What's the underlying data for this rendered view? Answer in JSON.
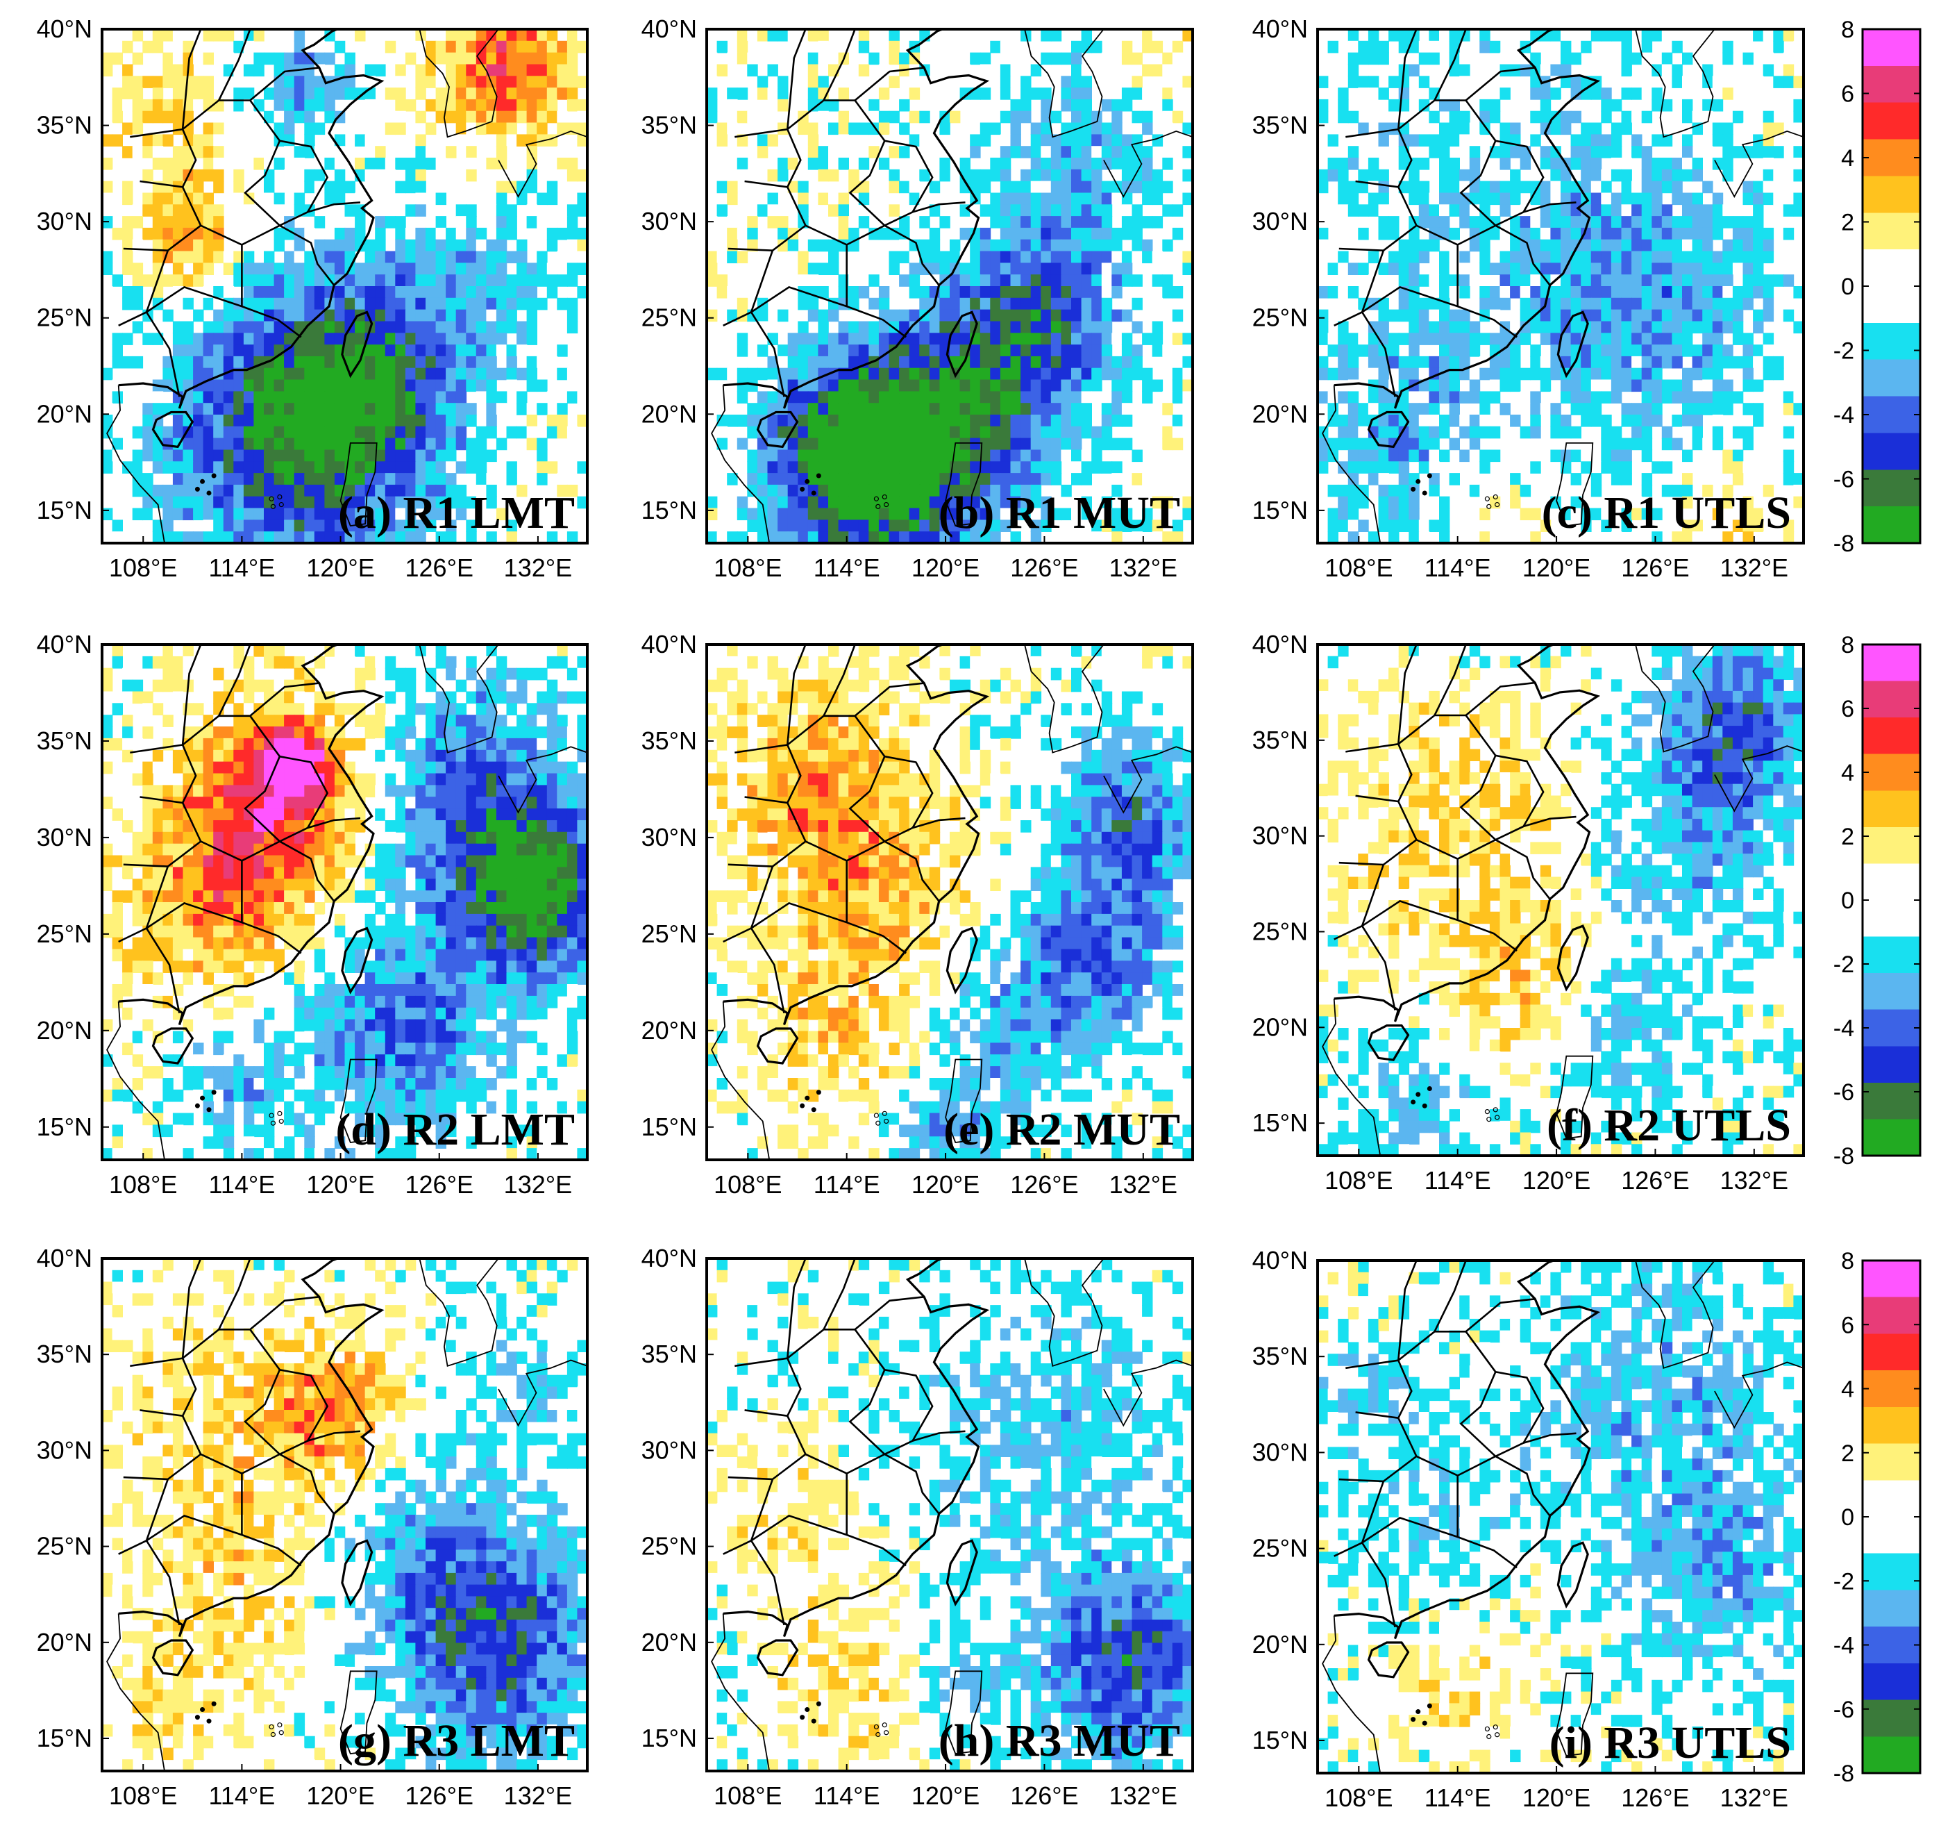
{
  "figure": {
    "lat_ticks": [
      "40°N",
      "35°N",
      "30°N",
      "25°N",
      "20°N",
      "15°N"
    ],
    "lon_ticks": [
      "108°E",
      "114°E",
      "120°E",
      "126°E",
      "132°E"
    ],
    "lat_range": [
      13.3,
      40
    ],
    "lon_range": [
      105.5,
      135
    ],
    "colorbar": {
      "ticks": [
        "8",
        "6",
        "4",
        "2",
        "0",
        "-2",
        "-4",
        "-6",
        "-8"
      ],
      "range": [
        -8,
        8
      ],
      "colors": [
        "#22aa22",
        "#3a7a3a",
        "#1a2fd8",
        "#3c63e6",
        "#5bb6f0",
        "#18e0f0",
        "#ffffff",
        "#ffffff",
        "#fff27a",
        "#ffc21e",
        "#ff8c1e",
        "#ff2a2a",
        "#e83c78",
        "#ff55ff"
      ]
    }
  },
  "panels": [
    {
      "id": "a",
      "label": "(a) R1 LMT",
      "features": [
        {
          "lon": 117,
          "lat": 19,
          "value": -6.5,
          "spread": 5
        },
        {
          "lon": 122,
          "lat": 22,
          "value": -4.5,
          "spread": 4
        },
        {
          "lon": 111,
          "lat": 29,
          "value": 3.5,
          "spread": 2
        },
        {
          "lon": 130,
          "lat": 38,
          "value": 4.5,
          "spread": 3
        },
        {
          "lon": 109,
          "lat": 35,
          "value": 2,
          "spread": 3
        },
        {
          "lon": 129,
          "lat": 27,
          "value": -2,
          "spread": 3
        },
        {
          "lon": 118,
          "lat": 37,
          "value": -3,
          "spread": 2
        }
      ]
    },
    {
      "id": "b",
      "label": "(b) R1 MUT",
      "features": [
        {
          "lon": 116,
          "lat": 17,
          "value": -7.5,
          "spread": 4
        },
        {
          "lon": 122,
          "lat": 21,
          "value": -5,
          "spread": 4
        },
        {
          "lon": 126,
          "lat": 25,
          "value": -4,
          "spread": 3
        },
        {
          "lon": 113,
          "lat": 19,
          "value": -3,
          "spread": 3
        },
        {
          "lon": 128,
          "lat": 33,
          "value": -2.5,
          "spread": 4
        },
        {
          "lon": 133,
          "lat": 39,
          "value": 2,
          "spread": 2
        }
      ]
    },
    {
      "id": "c",
      "label": "(c) R1 UTLS",
      "features": [
        {
          "lon": 116,
          "lat": 30,
          "value": -1.6,
          "spread": 8
        },
        {
          "lon": 126,
          "lat": 26,
          "value": -2.5,
          "spread": 5
        },
        {
          "lon": 110,
          "lat": 19,
          "value": -2,
          "spread": 4
        },
        {
          "lon": 116,
          "lat": 15,
          "value": 1.2,
          "spread": 2
        },
        {
          "lon": 131,
          "lat": 15,
          "value": 1.5,
          "spread": 2
        }
      ]
    },
    {
      "id": "d",
      "label": "(d) R2 LMT",
      "features": [
        {
          "lon": 116,
          "lat": 32,
          "value": 5,
          "spread": 4
        },
        {
          "lon": 117,
          "lat": 33.5,
          "value": 7.5,
          "spread": 1.2
        },
        {
          "lon": 112,
          "lat": 26,
          "value": 3,
          "spread": 4
        },
        {
          "lon": 132,
          "lat": 27,
          "value": -7,
          "spread": 3
        },
        {
          "lon": 128,
          "lat": 32,
          "value": -4.5,
          "spread": 4
        },
        {
          "lon": 124,
          "lat": 20,
          "value": -4,
          "spread": 4
        },
        {
          "lon": 114,
          "lat": 18,
          "value": -2.5,
          "spread": 3
        }
      ]
    },
    {
      "id": "e",
      "label": "(e) R2 MUT",
      "features": [
        {
          "lon": 112,
          "lat": 33,
          "value": 3,
          "spread": 4
        },
        {
          "lon": 116,
          "lat": 27,
          "value": 2.5,
          "spread": 4
        },
        {
          "lon": 113,
          "lat": 20,
          "value": 2,
          "spread": 3
        },
        {
          "lon": 131,
          "lat": 31,
          "value": -4.5,
          "spread": 3
        },
        {
          "lon": 129,
          "lat": 24,
          "value": -4,
          "spread": 3
        },
        {
          "lon": 124,
          "lat": 20,
          "value": -2.5,
          "spread": 3
        },
        {
          "lon": 120,
          "lat": 15,
          "value": -2.5,
          "spread": 2
        }
      ]
    },
    {
      "id": "f",
      "label": "(f) R2 UTLS",
      "features": [
        {
          "lon": 114,
          "lat": 30,
          "value": 2,
          "spread": 5
        },
        {
          "lon": 118,
          "lat": 22,
          "value": 2,
          "spread": 3
        },
        {
          "lon": 131,
          "lat": 36,
          "value": -4.5,
          "spread": 3
        },
        {
          "lon": 128,
          "lat": 30,
          "value": -2.5,
          "spread": 4
        },
        {
          "lon": 124,
          "lat": 20,
          "value": -2,
          "spread": 3
        },
        {
          "lon": 112,
          "lat": 16,
          "value": -1.8,
          "spread": 3
        }
      ]
    },
    {
      "id": "g",
      "label": "(g) R3 LMT",
      "features": [
        {
          "lon": 120,
          "lat": 32,
          "value": 3.5,
          "spread": 2.5
        },
        {
          "lon": 114,
          "lat": 31,
          "value": 1.8,
          "spread": 5
        },
        {
          "lon": 113,
          "lat": 22,
          "value": 1.5,
          "spread": 4
        },
        {
          "lon": 130,
          "lat": 20,
          "value": -5,
          "spread": 4
        },
        {
          "lon": 125,
          "lat": 24,
          "value": -2.5,
          "spread": 4
        },
        {
          "lon": 131,
          "lat": 33,
          "value": -2,
          "spread": 2
        },
        {
          "lon": 109,
          "lat": 16,
          "value": 1.5,
          "spread": 2
        }
      ]
    },
    {
      "id": "h",
      "label": "(h) R3 MUT",
      "features": [
        {
          "lon": 131,
          "lat": 19,
          "value": -5.5,
          "spread": 3.5
        },
        {
          "lon": 126,
          "lat": 31,
          "value": -2.2,
          "spread": 5
        },
        {
          "lon": 114,
          "lat": 18,
          "value": 1.8,
          "spread": 3
        },
        {
          "lon": 110,
          "lat": 27,
          "value": 1.2,
          "spread": 3
        },
        {
          "lon": 121,
          "lat": 18,
          "value": -2,
          "spread": 2
        }
      ]
    },
    {
      "id": "i",
      "label": "(i) R3 UTLS",
      "features": [
        {
          "lon": 126,
          "lat": 33,
          "value": -2.3,
          "spread": 5
        },
        {
          "lon": 130,
          "lat": 24,
          "value": -2.5,
          "spread": 4
        },
        {
          "lon": 112,
          "lat": 27,
          "value": -1.2,
          "spread": 4
        },
        {
          "lon": 114,
          "lat": 18,
          "value": 1.2,
          "spread": 3
        },
        {
          "lon": 108,
          "lat": 33,
          "value": -1.5,
          "spread": 2
        }
      ]
    }
  ]
}
